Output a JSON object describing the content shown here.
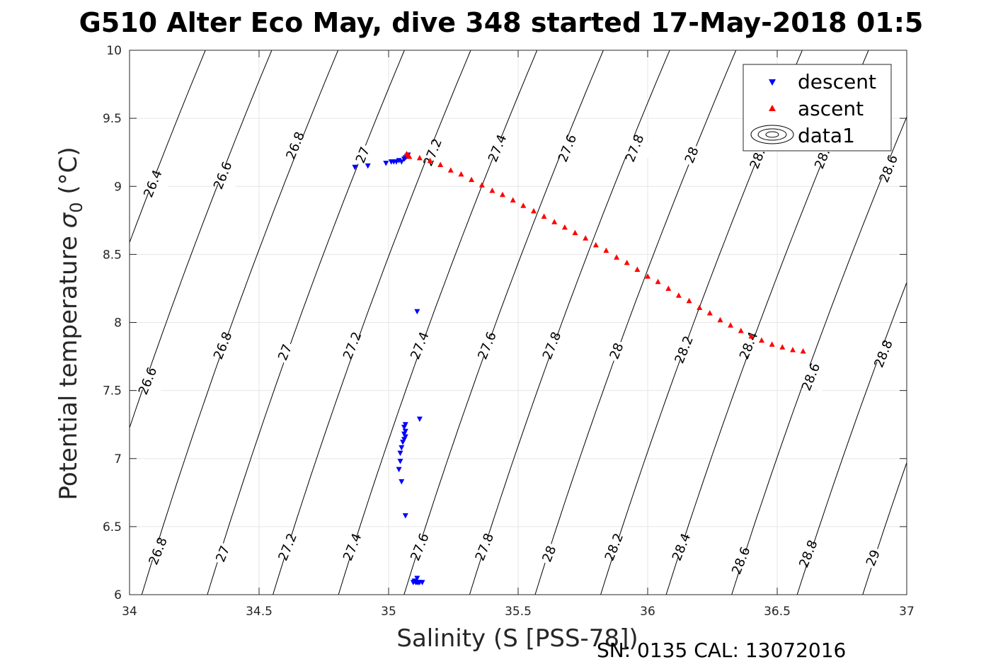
{
  "chart_data": {
    "type": "scatter",
    "title": "G510 Alter Eco May, dive 348 started 17-May-2018 01:5",
    "xlabel": "Salinity (S [PSS-78])",
    "ylabel_main": "Potential temperature ",
    "ylabel_sym": "σ",
    "ylabel_sub": "0",
    "ylabel_unit": " (°C)",
    "xlim": [
      34,
      37
    ],
    "ylim": [
      6,
      10
    ],
    "xticks": [
      "34",
      "34.5",
      "35",
      "35.5",
      "36",
      "36.5",
      "37"
    ],
    "yticks": [
      "6",
      "6.5",
      "7",
      "7.5",
      "8",
      "8.5",
      "9",
      "9.5",
      "10"
    ],
    "grid": true,
    "legend_position": "top-right",
    "legend": [
      "descent",
      "ascent",
      "data1"
    ],
    "footer": "SN: 0135  CAL: 13072016",
    "colors": {
      "descent": "#0000ff",
      "ascent": "#ff0000",
      "contour": "#000000",
      "grid": "#e6e6e6"
    },
    "contours": {
      "levels": [
        "26.4",
        "26.6",
        "26.8",
        "27",
        "27.2",
        "27.4",
        "27.6",
        "27.8",
        "28",
        "28.2",
        "28.4",
        "28.6",
        "28.8",
        "29"
      ],
      "labels": [
        {
          "text": "26.4",
          "x": 34.09,
          "y": 9.02
        },
        {
          "text": "26.6",
          "x": 34.36,
          "y": 9.08
        },
        {
          "text": "26.8",
          "x": 34.64,
          "y": 9.3
        },
        {
          "text": "27",
          "x": 34.9,
          "y": 9.23
        },
        {
          "text": "27.2",
          "x": 35.17,
          "y": 9.25
        },
        {
          "text": "27.4",
          "x": 35.42,
          "y": 9.28
        },
        {
          "text": "27.6",
          "x": 35.69,
          "y": 9.28
        },
        {
          "text": "27.8",
          "x": 35.95,
          "y": 9.28
        },
        {
          "text": "28",
          "x": 36.17,
          "y": 9.23
        },
        {
          "text": "28.2",
          "x": 36.43,
          "y": 9.23
        },
        {
          "text": "28.4",
          "x": 36.68,
          "y": 9.23
        },
        {
          "text": "28.6",
          "x": 36.93,
          "y": 9.13
        },
        {
          "text": "26.6",
          "x": 34.07,
          "y": 7.57
        },
        {
          "text": "26.8",
          "x": 34.36,
          "y": 7.83
        },
        {
          "text": "27",
          "x": 34.6,
          "y": 7.78
        },
        {
          "text": "27.2",
          "x": 34.86,
          "y": 7.83
        },
        {
          "text": "27.4",
          "x": 35.12,
          "y": 7.83
        },
        {
          "text": "27.6",
          "x": 35.38,
          "y": 7.83
        },
        {
          "text": "27.8",
          "x": 35.63,
          "y": 7.83
        },
        {
          "text": "28",
          "x": 35.88,
          "y": 7.79
        },
        {
          "text": "28.2",
          "x": 36.14,
          "y": 7.8
        },
        {
          "text": "28.4",
          "x": 36.39,
          "y": 7.83
        },
        {
          "text": "28.6",
          "x": 36.63,
          "y": 7.6
        },
        {
          "text": "28.8",
          "x": 36.91,
          "y": 7.77
        },
        {
          "text": "26.8",
          "x": 34.11,
          "y": 6.32
        },
        {
          "text": "27",
          "x": 34.36,
          "y": 6.3
        },
        {
          "text": "27.2",
          "x": 34.61,
          "y": 6.35
        },
        {
          "text": "27.4",
          "x": 34.86,
          "y": 6.35
        },
        {
          "text": "27.6",
          "x": 35.12,
          "y": 6.35
        },
        {
          "text": "27.8",
          "x": 35.37,
          "y": 6.35
        },
        {
          "text": "28",
          "x": 35.62,
          "y": 6.3
        },
        {
          "text": "28.2",
          "x": 35.87,
          "y": 6.35
        },
        {
          "text": "28.4",
          "x": 36.13,
          "y": 6.35
        },
        {
          "text": "28.6",
          "x": 36.36,
          "y": 6.25
        },
        {
          "text": "28.8",
          "x": 36.62,
          "y": 6.3
        },
        {
          "text": "29",
          "x": 36.87,
          "y": 6.27
        }
      ]
    },
    "series": [
      {
        "name": "descent",
        "marker": "triangle-down",
        "points": [
          [
            34.87,
            9.14
          ],
          [
            34.92,
            9.15
          ],
          [
            34.99,
            9.17
          ],
          [
            35.01,
            9.18
          ],
          [
            35.02,
            9.18
          ],
          [
            35.03,
            9.18
          ],
          [
            35.04,
            9.19
          ],
          [
            35.05,
            9.18
          ],
          [
            35.06,
            9.2
          ],
          [
            35.065,
            9.21
          ],
          [
            35.07,
            9.22
          ],
          [
            35.075,
            9.23
          ],
          [
            35.11,
            8.08
          ],
          [
            35.12,
            7.29
          ],
          [
            35.065,
            7.25
          ],
          [
            35.06,
            7.23
          ],
          [
            35.065,
            7.2
          ],
          [
            35.06,
            7.18
          ],
          [
            35.065,
            7.16
          ],
          [
            35.06,
            7.14
          ],
          [
            35.055,
            7.12
          ],
          [
            35.05,
            7.08
          ],
          [
            35.045,
            7.04
          ],
          [
            35.045,
            6.98
          ],
          [
            35.04,
            6.92
          ],
          [
            35.05,
            6.83
          ],
          [
            35.065,
            6.58
          ],
          [
            35.11,
            6.12
          ],
          [
            35.1,
            6.1
          ],
          [
            35.11,
            6.09
          ],
          [
            35.12,
            6.09
          ],
          [
            35.13,
            6.09
          ],
          [
            35.115,
            6.09
          ],
          [
            35.095,
            6.09
          ],
          [
            35.105,
            6.09
          ]
        ]
      },
      {
        "name": "ascent",
        "marker": "triangle-up",
        "points": [
          [
            35.07,
            9.24
          ],
          [
            35.075,
            9.23
          ],
          [
            35.08,
            9.22
          ],
          [
            35.12,
            9.21
          ],
          [
            35.16,
            9.19
          ],
          [
            35.2,
            9.16
          ],
          [
            35.24,
            9.12
          ],
          [
            35.28,
            9.09
          ],
          [
            35.32,
            9.05
          ],
          [
            35.36,
            9.01
          ],
          [
            35.4,
            8.97
          ],
          [
            35.44,
            8.94
          ],
          [
            35.48,
            8.9
          ],
          [
            35.52,
            8.86
          ],
          [
            35.56,
            8.82
          ],
          [
            35.6,
            8.78
          ],
          [
            35.64,
            8.74
          ],
          [
            35.68,
            8.7
          ],
          [
            35.72,
            8.66
          ],
          [
            35.76,
            8.62
          ],
          [
            35.8,
            8.57
          ],
          [
            35.84,
            8.53
          ],
          [
            35.88,
            8.48
          ],
          [
            35.92,
            8.44
          ],
          [
            35.96,
            8.39
          ],
          [
            36.0,
            8.34
          ],
          [
            36.04,
            8.3
          ],
          [
            36.08,
            8.25
          ],
          [
            36.12,
            8.2
          ],
          [
            36.16,
            8.16
          ],
          [
            36.2,
            8.11
          ],
          [
            36.24,
            8.07
          ],
          [
            36.28,
            8.02
          ],
          [
            36.32,
            7.98
          ],
          [
            36.36,
            7.94
          ],
          [
            36.4,
            7.9
          ],
          [
            36.44,
            7.87
          ],
          [
            36.48,
            7.84
          ],
          [
            36.52,
            7.82
          ],
          [
            36.56,
            7.8
          ],
          [
            36.6,
            7.79
          ]
        ]
      }
    ]
  }
}
